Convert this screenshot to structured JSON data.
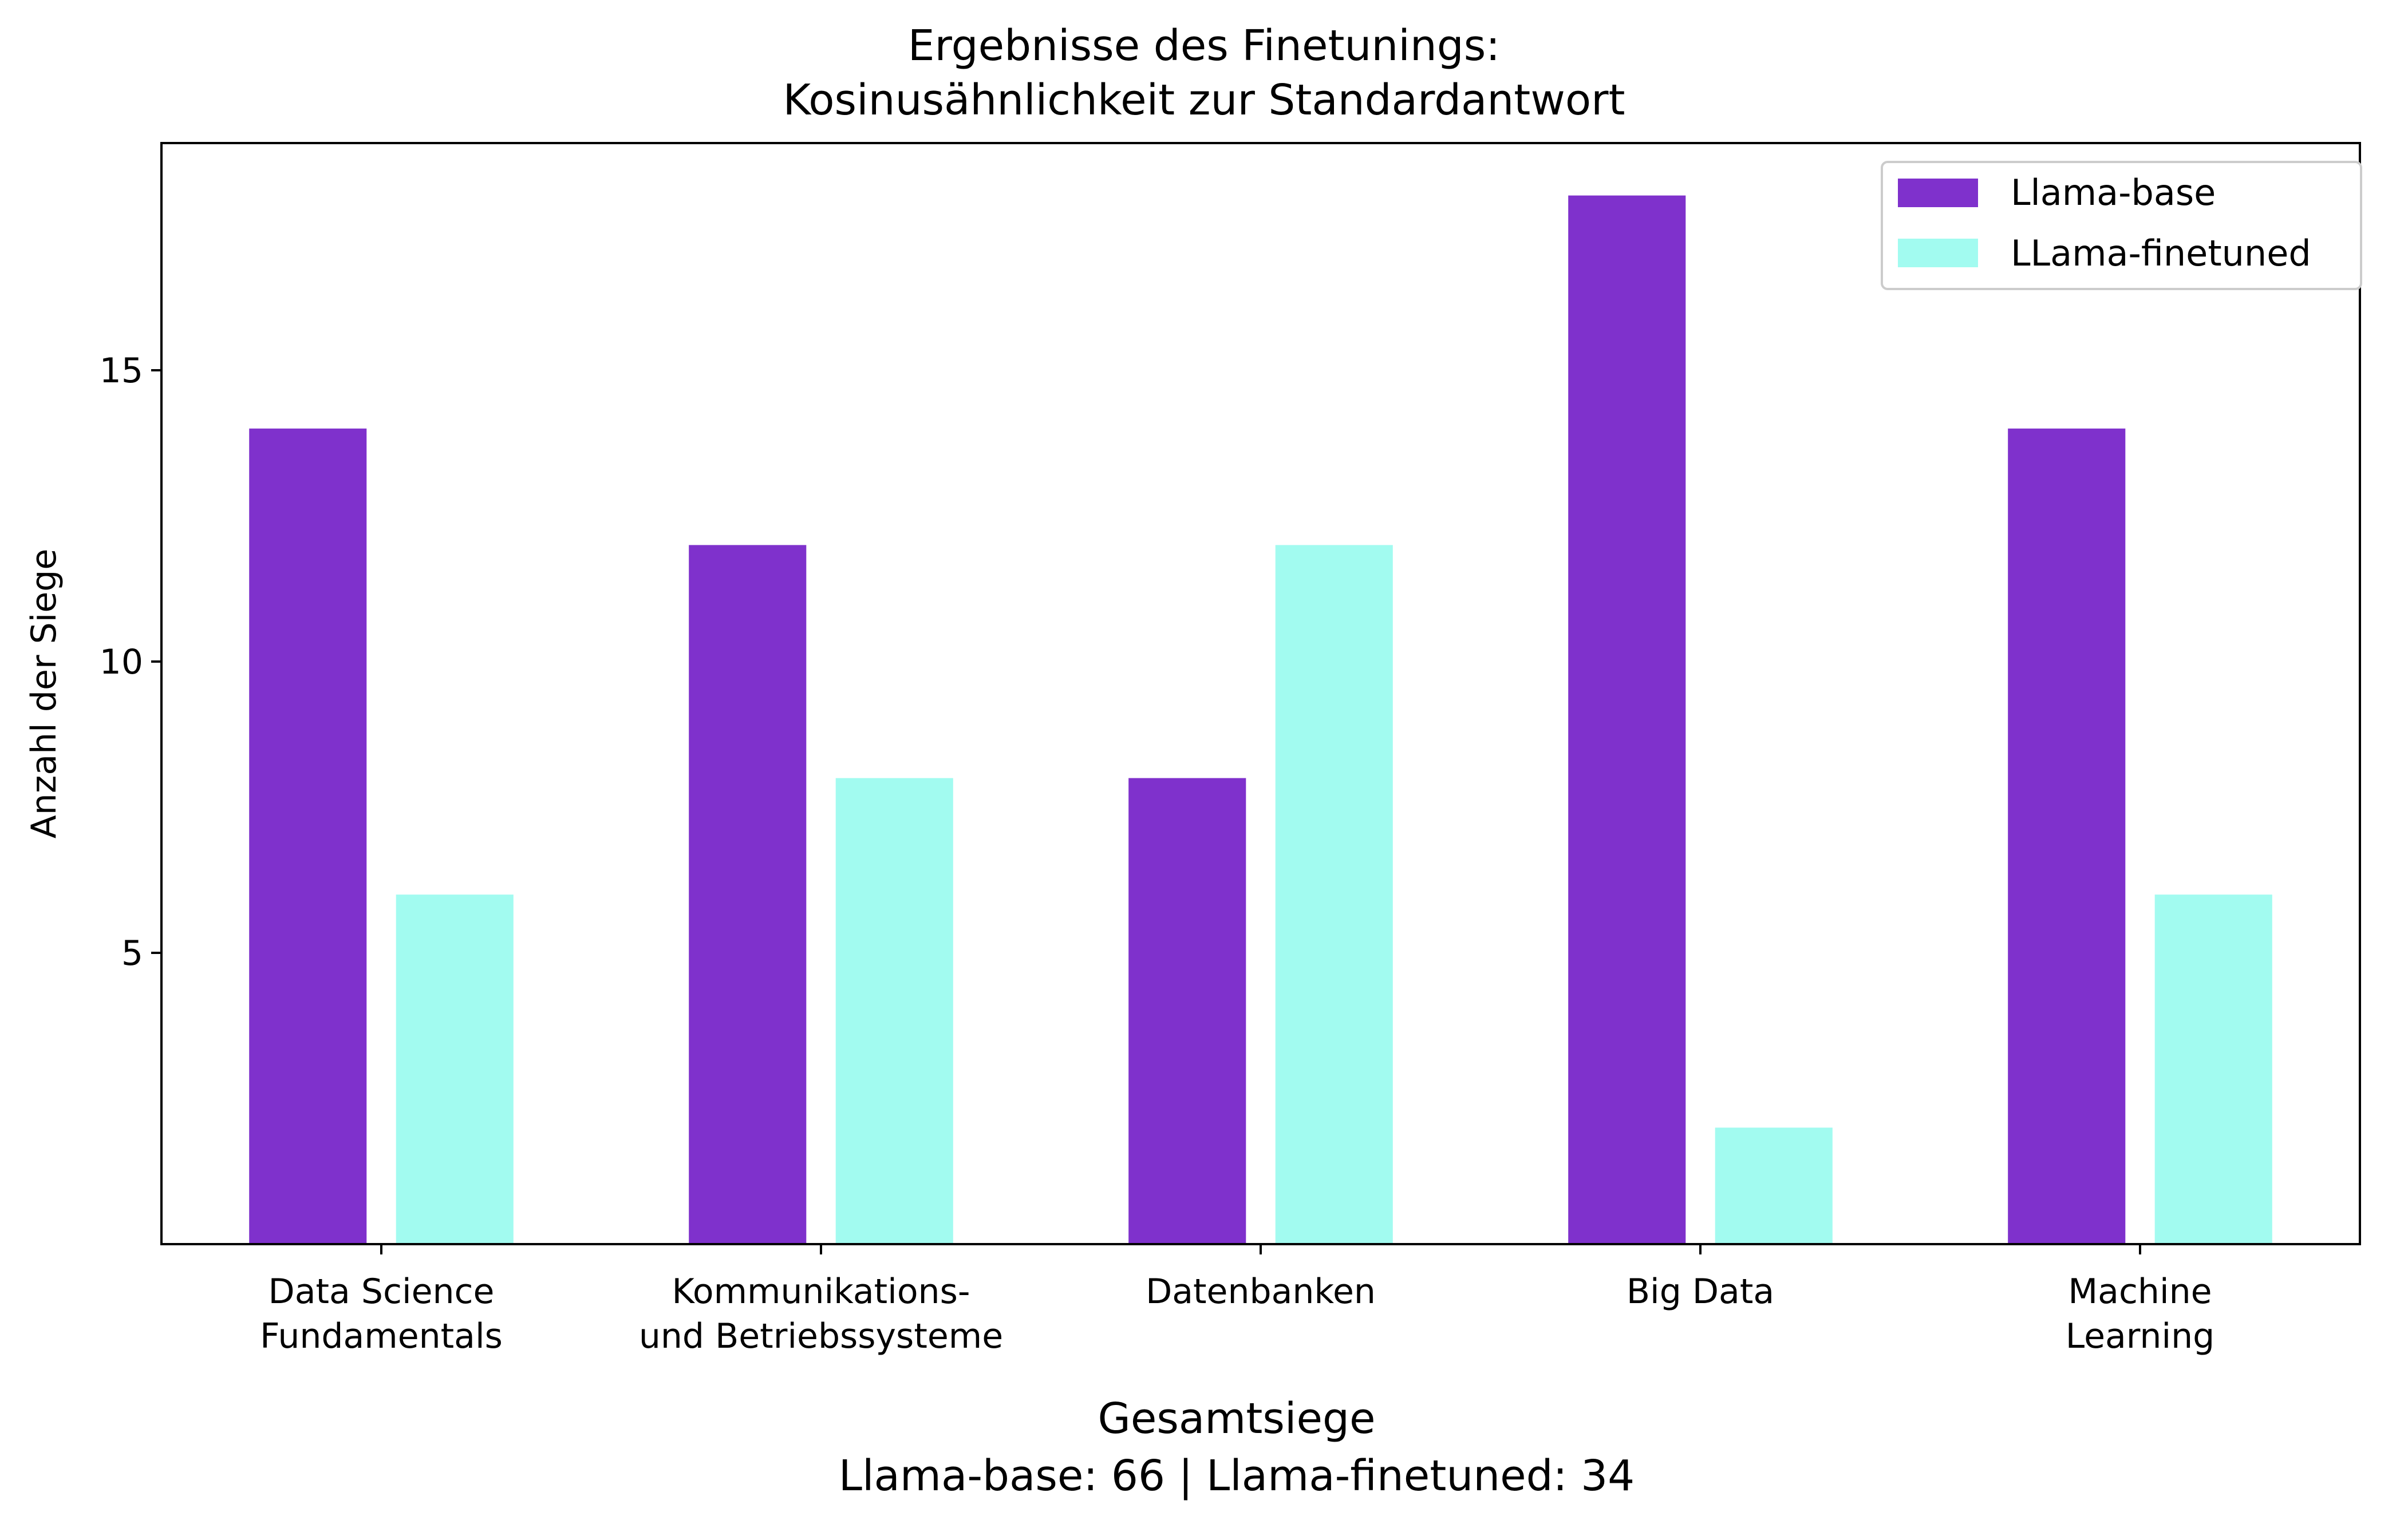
{
  "chart_data": {
    "type": "bar",
    "title": [
      "Ergebnisse des Finetunings:",
      "Kosinusähnlichkeit zur Standardantwort"
    ],
    "xlabel": "",
    "ylabel": "Anzahl der Siege",
    "ylim": [
      0,
      18.9
    ],
    "yticks": [
      5,
      10,
      15
    ],
    "categories": [
      [
        "Data Science",
        "Fundamentals"
      ],
      [
        "Kommunikations-",
        "und Betriebssysteme"
      ],
      [
        "Datenbanken"
      ],
      [
        "Big Data"
      ],
      [
        "Machine",
        "Learning"
      ]
    ],
    "series": [
      {
        "name": "Llama-base",
        "color": "#7f31cc",
        "values": [
          14,
          12,
          8,
          18,
          14
        ]
      },
      {
        "name": "LLama-finetuned",
        "color": "#a2fbf0",
        "values": [
          6,
          8,
          12,
          2,
          6
        ]
      }
    ],
    "legend": {
      "position": "top-right",
      "entries": [
        "Llama-base",
        "LLama-finetuned"
      ]
    },
    "grid": false,
    "footer": [
      "Gesamtsiege",
      "Llama-base: 66 | Llama-finetuned: 34"
    ]
  }
}
